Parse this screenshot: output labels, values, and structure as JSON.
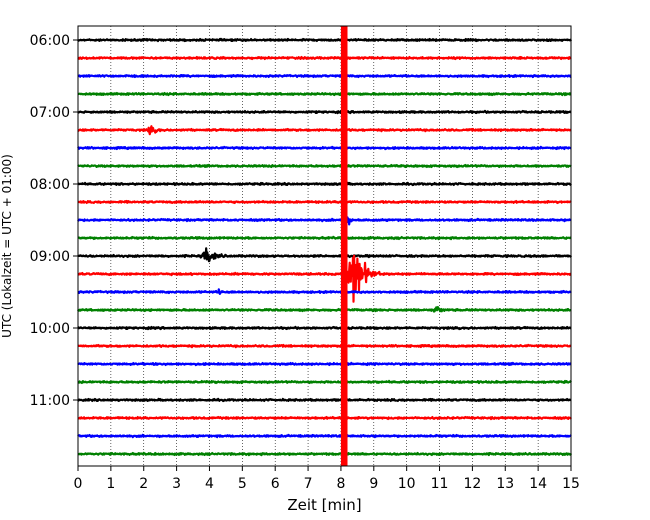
{
  "chart_data": {
    "type": "line",
    "title": "",
    "xlabel": "Zeit  [min]",
    "ylabel": "UTC (Lokalzeit = UTC + 01:00)",
    "xlim": [
      0,
      15
    ],
    "x_ticks": [
      "0",
      "1",
      "2",
      "3",
      "4",
      "5",
      "6",
      "7",
      "8",
      "9",
      "10",
      "11",
      "12",
      "13",
      "14",
      "15"
    ],
    "y_ticks": [
      {
        "label": "06:00",
        "row": 0
      },
      {
        "label": "07:00",
        "row": 4
      },
      {
        "label": "08:00",
        "row": 8
      },
      {
        "label": "09:00",
        "row": 12
      },
      {
        "label": "10:00",
        "row": 16
      },
      {
        "label": "11:00",
        "row": 20
      }
    ],
    "row_minutes": 15,
    "colors": [
      "#000000",
      "#ff0000",
      "#0000ff",
      "#008000"
    ],
    "grid": "vertical dotted",
    "legend": "none",
    "rows": [
      {
        "time": "06:00",
        "color": "#000000",
        "events": []
      },
      {
        "time": "06:15",
        "color": "#ff0000",
        "events": []
      },
      {
        "time": "06:30",
        "color": "#0000ff",
        "events": []
      },
      {
        "time": "06:45",
        "color": "#008000",
        "events": []
      },
      {
        "time": "07:00",
        "color": "#000000",
        "events": []
      },
      {
        "time": "07:15",
        "color": "#ff0000",
        "events": [
          {
            "t": 2.2,
            "width": 0.4,
            "amp": 0.3
          }
        ]
      },
      {
        "time": "07:30",
        "color": "#0000ff",
        "events": []
      },
      {
        "time": "07:45",
        "color": "#008000",
        "events": []
      },
      {
        "time": "08:00",
        "color": "#000000",
        "events": []
      },
      {
        "time": "08:15",
        "color": "#ff0000",
        "events": []
      },
      {
        "time": "08:30",
        "color": "#0000ff",
        "events": [
          {
            "t": 8.2,
            "width": 0.25,
            "amp": 0.4
          }
        ]
      },
      {
        "time": "08:45",
        "color": "#008000",
        "events": []
      },
      {
        "time": "09:00",
        "color": "#000000",
        "events": [
          {
            "t": 3.9,
            "width": 0.6,
            "amp": 0.6
          }
        ]
      },
      {
        "time": "09:15",
        "color": "#ff0000",
        "events": [
          {
            "t": 8.4,
            "width": 0.8,
            "amp": 2.2
          }
        ]
      },
      {
        "time": "09:30",
        "color": "#0000ff",
        "events": [
          {
            "t": 4.3,
            "width": 0.1,
            "amp": 0.5
          }
        ]
      },
      {
        "time": "09:45",
        "color": "#008000",
        "events": [
          {
            "t": 10.9,
            "width": 0.3,
            "amp": 0.35
          }
        ]
      },
      {
        "time": "10:00",
        "color": "#000000",
        "events": []
      },
      {
        "time": "10:15",
        "color": "#ff0000",
        "events": []
      },
      {
        "time": "10:30",
        "color": "#0000ff",
        "events": []
      },
      {
        "time": "10:45",
        "color": "#008000",
        "events": []
      },
      {
        "time": "11:00",
        "color": "#000000",
        "events": []
      },
      {
        "time": "11:15",
        "color": "#ff0000",
        "events": []
      },
      {
        "time": "11:30",
        "color": "#0000ff",
        "events": []
      },
      {
        "time": "11:45",
        "color": "#008000",
        "events": []
      }
    ],
    "overlay": {
      "t": 8.1,
      "t_width": 0.2,
      "color": "#ff0000",
      "row_start": 0,
      "row_end": 23
    }
  }
}
